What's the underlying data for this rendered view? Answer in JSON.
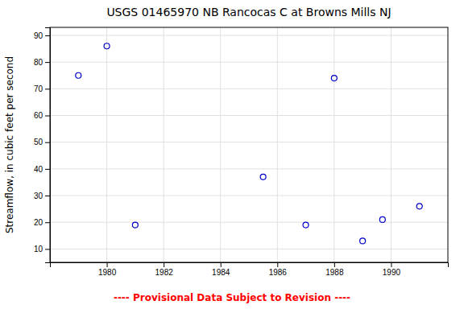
{
  "chart_data": {
    "type": "scatter",
    "title": "USGS 01465970 NB Rancocas C at Browns Mills NJ",
    "ylabel": "Streamflow, in cubic feet per second",
    "x": [
      1979,
      1980,
      1981,
      1985.5,
      1987,
      1988,
      1989,
      1989.7,
      1991
    ],
    "values": [
      75,
      86,
      19,
      37,
      19,
      74,
      13,
      21,
      26
    ],
    "color": "#0000cc",
    "marker": "circle-open",
    "xlim": [
      1978,
      1992
    ],
    "ylim": [
      5,
      93
    ],
    "xticks": [
      1980,
      1982,
      1984,
      1986,
      1988,
      1990
    ],
    "yticks": [
      10,
      20,
      30,
      40,
      50,
      60,
      70,
      80,
      90
    ],
    "grid": true,
    "annotations": [
      {
        "text": "---- Provisional Data Subject to Revision ----",
        "color": "red"
      }
    ]
  }
}
